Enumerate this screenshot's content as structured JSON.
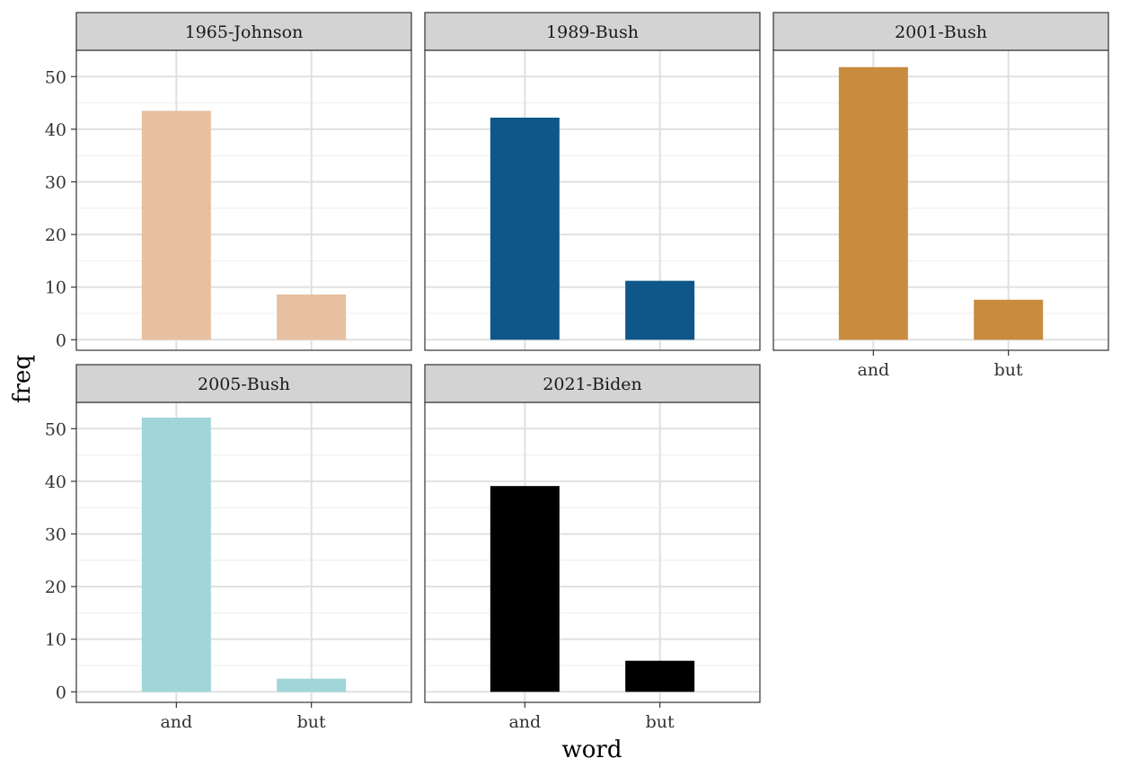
{
  "chart_data": {
    "type": "bar",
    "layout": "facet-grid",
    "xlabel": "word",
    "ylabel": "freq",
    "categories": [
      "and",
      "but"
    ],
    "ylim": [
      -2,
      55
    ],
    "yticks": [
      0,
      10,
      20,
      30,
      40,
      50
    ],
    "grid": true,
    "panels": [
      {
        "title": "1965-Johnson",
        "color": "#e6c0a0",
        "values": [
          43.5,
          8.6
        ]
      },
      {
        "title": "1989-Bush",
        "color": "#0e5788",
        "values": [
          42.2,
          11.2
        ]
      },
      {
        "title": "2001-Bush",
        "color": "#c98b3e",
        "values": [
          51.8,
          7.6
        ]
      },
      {
        "title": "2005-Bush",
        "color": "#a0d6d8",
        "values": [
          52.1,
          2.5
        ]
      },
      {
        "title": "2021-Biden",
        "color": "#000000",
        "values": [
          39.1,
          5.9
        ]
      }
    ]
  }
}
